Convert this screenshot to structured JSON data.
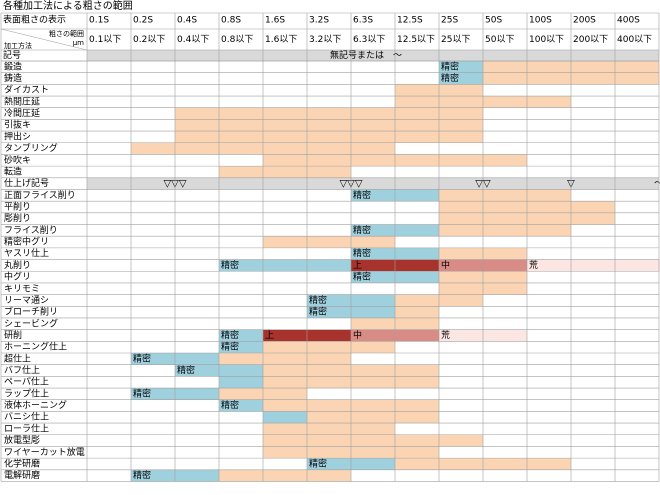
{
  "title": "各種加工法による粗さの範囲",
  "header": {
    "row1_label": "表面粗さの表示",
    "row2_label_top": "粗さの範囲",
    "row2_label_bottom": "加工方法",
    "row2_unit": "μm",
    "symbol_label": "記号",
    "symbol_text": "無記号または　～",
    "columns": [
      {
        "s": "0.1S",
        "r": "0.1以下"
      },
      {
        "s": "0.2S",
        "r": "0.2以下"
      },
      {
        "s": "0.4S",
        "r": "0.4以下"
      },
      {
        "s": "0.8S",
        "r": "0.8以下"
      },
      {
        "s": "1.6S",
        "r": "1.6以下"
      },
      {
        "s": "3.2S",
        "r": "3.2以下"
      },
      {
        "s": "6.3S",
        "r": "6.3以下"
      },
      {
        "s": "12.5S",
        "r": "12.5以下"
      },
      {
        "s": "25S",
        "r": "25以下"
      },
      {
        "s": "50S",
        "r": "50以下"
      },
      {
        "s": "100S",
        "r": "100以下"
      },
      {
        "s": "200S",
        "r": "200以下"
      },
      {
        "s": "400S",
        "r": "400以下"
      }
    ]
  },
  "colors": {
    "blue": "#9fd0de",
    "orange": "#fbd5b3",
    "darkred": "#a8322c",
    "red": "#d98b86",
    "pink": "#fbe6e4",
    "gray": "#d9d9d9",
    "grid": "#a0a0a0",
    "header_bg": "#ffffff"
  },
  "rows": [
    {
      "name": "鍛造",
      "segs": [
        {
          "c": "blue",
          "from": 8,
          "to": 9,
          "label": "精密"
        },
        {
          "c": "orange",
          "from": 9,
          "to": 13
        }
      ]
    },
    {
      "name": "鋳造",
      "segs": [
        {
          "c": "blue",
          "from": 8,
          "to": 9,
          "label": "精密"
        },
        {
          "c": "orange",
          "from": 9,
          "to": 13
        }
      ]
    },
    {
      "name": "ダイカスト",
      "segs": [
        {
          "c": "orange",
          "from": 7,
          "to": 9
        }
      ]
    },
    {
      "name": "熱間圧延",
      "segs": [
        {
          "c": "orange",
          "from": 7,
          "to": 11
        }
      ]
    },
    {
      "name": "冷間圧延",
      "segs": [
        {
          "c": "orange",
          "from": 2,
          "to": 9
        }
      ]
    },
    {
      "name": "引抜キ",
      "segs": [
        {
          "c": "orange",
          "from": 2,
          "to": 9
        }
      ]
    },
    {
      "name": "押出シ",
      "segs": [
        {
          "c": "orange",
          "from": 2,
          "to": 9
        }
      ]
    },
    {
      "name": "タンブリング",
      "segs": [
        {
          "c": "orange",
          "from": 1,
          "to": 7
        }
      ]
    },
    {
      "name": "砂吹キ",
      "segs": [
        {
          "c": "orange",
          "from": 4,
          "to": 10
        }
      ]
    },
    {
      "name": "転造",
      "segs": [
        {
          "c": "orange",
          "from": 3,
          "to": 6
        }
      ]
    },
    {
      "name": "仕上げ記号",
      "kind": "symbols",
      "symbols": [
        {
          "col": 2,
          "text": "▽▽▽"
        },
        {
          "col": 6,
          "text": "▽▽▽"
        },
        {
          "col": 9,
          "text": "▽▽"
        },
        {
          "col": 11,
          "text": "▽"
        },
        {
          "col": 13,
          "text": "～"
        }
      ]
    },
    {
      "name": "正面フライス削り",
      "segs": [
        {
          "c": "blue",
          "from": 6,
          "to": 8,
          "label": "精密"
        },
        {
          "c": "orange",
          "from": 8,
          "to": 11
        }
      ]
    },
    {
      "name": "平削り",
      "segs": [
        {
          "c": "orange",
          "from": 8,
          "to": 12
        }
      ]
    },
    {
      "name": "彫削り",
      "segs": [
        {
          "c": "orange",
          "from": 8,
          "to": 12
        }
      ]
    },
    {
      "name": "フライス削り",
      "segs": [
        {
          "c": "blue",
          "from": 6,
          "to": 8,
          "label": "精密"
        },
        {
          "c": "orange",
          "from": 8,
          "to": 11
        }
      ]
    },
    {
      "name": "精密中グリ",
      "segs": [
        {
          "c": "orange",
          "from": 4,
          "to": 7
        }
      ]
    },
    {
      "name": "ヤスリ仕上",
      "segs": [
        {
          "c": "blue",
          "from": 6,
          "to": 8,
          "label": "精密"
        },
        {
          "c": "orange",
          "from": 8,
          "to": 10
        }
      ]
    },
    {
      "name": "丸削り",
      "segs": [
        {
          "c": "blue",
          "from": 3,
          "to": 6,
          "label": "精密"
        },
        {
          "c": "darkred",
          "from": 6,
          "to": 8,
          "label": "上"
        },
        {
          "c": "red",
          "from": 8,
          "to": 10,
          "label": "中"
        },
        {
          "c": "pink",
          "from": 10,
          "to": 14,
          "label": "荒"
        }
      ]
    },
    {
      "name": "中グリ",
      "segs": [
        {
          "c": "blue",
          "from": 6,
          "to": 8,
          "label": "精密"
        },
        {
          "c": "orange",
          "from": 8,
          "to": 10
        }
      ]
    },
    {
      "name": "キリモミ",
      "segs": [
        {
          "c": "orange",
          "from": 8,
          "to": 10
        }
      ]
    },
    {
      "name": "リーマ通シ",
      "segs": [
        {
          "c": "blue",
          "from": 5,
          "to": 7,
          "label": "精密"
        },
        {
          "c": "orange",
          "from": 7,
          "to": 9
        }
      ]
    },
    {
      "name": "ブローチ削リ",
      "segs": [
        {
          "c": "blue",
          "from": 5,
          "to": 7,
          "label": "精密"
        },
        {
          "c": "orange",
          "from": 7,
          "to": 8
        }
      ]
    },
    {
      "name": "シェービング",
      "segs": [
        {
          "c": "orange",
          "from": 6,
          "to": 8
        }
      ]
    },
    {
      "name": "研削",
      "segs": [
        {
          "c": "blue",
          "from": 3,
          "to": 4,
          "label": "精密"
        },
        {
          "c": "darkred",
          "from": 4,
          "to": 6,
          "label": "上"
        },
        {
          "c": "red",
          "from": 6,
          "to": 8,
          "label": "中"
        },
        {
          "c": "pink",
          "from": 8,
          "to": 10,
          "label": "荒"
        }
      ]
    },
    {
      "name": "ホーニング仕上",
      "segs": [
        {
          "c": "blue",
          "from": 3,
          "to": 4,
          "label": "精密"
        },
        {
          "c": "orange",
          "from": 4,
          "to": 7
        }
      ]
    },
    {
      "name": "超仕上",
      "segs": [
        {
          "c": "blue",
          "from": 1,
          "to": 3,
          "label": "精密"
        },
        {
          "c": "orange",
          "from": 3,
          "to": 6
        }
      ]
    },
    {
      "name": "バフ仕上",
      "segs": [
        {
          "c": "blue",
          "from": 2,
          "to": 4,
          "label": "精密"
        },
        {
          "c": "orange",
          "from": 4,
          "to": 8
        }
      ]
    },
    {
      "name": "ペーパ仕上",
      "segs": [
        {
          "c": "blue",
          "from": 3,
          "to": 4
        },
        {
          "c": "orange",
          "from": 4,
          "to": 8
        }
      ]
    },
    {
      "name": "ラップ仕上",
      "segs": [
        {
          "c": "blue",
          "from": 1,
          "to": 3,
          "label": "精密"
        },
        {
          "c": "orange",
          "from": 3,
          "to": 5
        }
      ]
    },
    {
      "name": "液体ホーニング",
      "segs": [
        {
          "c": "blue",
          "from": 3,
          "to": 4,
          "label": "精密"
        },
        {
          "c": "orange",
          "from": 4,
          "to": 8
        }
      ]
    },
    {
      "name": "バニシ仕上",
      "segs": [
        {
          "c": "blue",
          "from": 4,
          "to": 5
        },
        {
          "c": "orange",
          "from": 5,
          "to": 8
        }
      ]
    },
    {
      "name": "ローラ仕上",
      "segs": [
        {
          "c": "orange",
          "from": 4,
          "to": 7
        }
      ]
    },
    {
      "name": "放電型彫",
      "segs": [
        {
          "c": "orange",
          "from": 4,
          "to": 9
        }
      ]
    },
    {
      "name": "ワイヤーカット放電",
      "segs": [
        {
          "c": "orange",
          "from": 4,
          "to": 8
        }
      ]
    },
    {
      "name": "化学研磨",
      "segs": [
        {
          "c": "blue",
          "from": 5,
          "to": 7,
          "label": "精密"
        },
        {
          "c": "orange",
          "from": 7,
          "to": 11
        }
      ]
    },
    {
      "name": "電解研磨",
      "segs": [
        {
          "c": "blue",
          "from": 1,
          "to": 3,
          "label": "精密"
        },
        {
          "c": "orange",
          "from": 3,
          "to": 6
        }
      ]
    }
  ]
}
